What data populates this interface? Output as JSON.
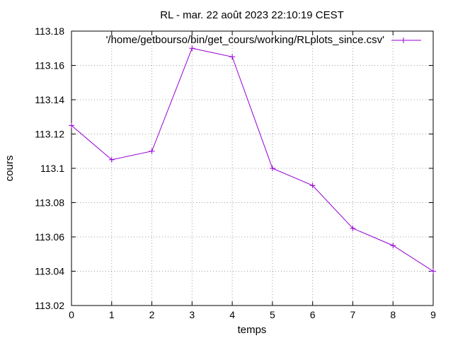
{
  "chart_data": {
    "type": "line",
    "title": "RL - mar. 22 août 2023 22:10:19 CEST",
    "xlabel": "temps",
    "ylabel": "cours",
    "xlim": [
      0,
      9
    ],
    "ylim": [
      113.02,
      113.18
    ],
    "x_ticks": [
      "0",
      "1",
      "2",
      "3",
      "4",
      "5",
      "6",
      "7",
      "8",
      "9"
    ],
    "y_ticks": [
      "113.02",
      "113.04",
      "113.06",
      "113.08",
      "113.1",
      "113.12",
      "113.14",
      "113.16",
      "113.18"
    ],
    "grid": true,
    "legend_position": "top-right",
    "series": [
      {
        "name": "'/home/getbourso/bin/get_cours/working/RLplots_since.csv'",
        "color": "#9400d3",
        "marker": "plus",
        "x": [
          0,
          1,
          2,
          3,
          4,
          5,
          6,
          7,
          8,
          9
        ],
        "y": [
          113.125,
          113.105,
          113.11,
          113.17,
          113.165,
          113.1,
          113.09,
          113.065,
          113.055,
          113.04
        ]
      }
    ]
  }
}
